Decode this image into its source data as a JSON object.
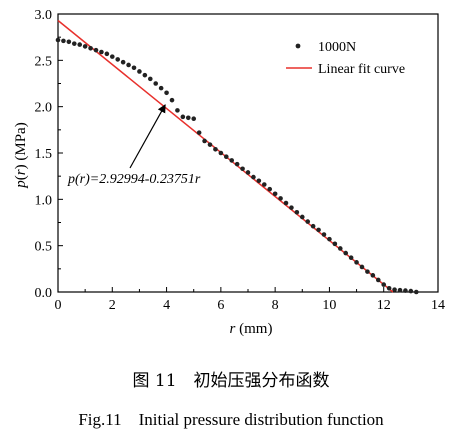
{
  "chart_data": {
    "type": "scatter",
    "xlabel": "r (mm)",
    "ylabel": "p(r) (MPa)",
    "xlim": [
      0,
      14
    ],
    "ylim": [
      0.0,
      3.0
    ],
    "xticks": [
      "0",
      "2",
      "4",
      "6",
      "8",
      "10",
      "12",
      "14"
    ],
    "yticks": [
      "0.0",
      "0.5",
      "1.0",
      "1.5",
      "2.0",
      "2.5",
      "3.0"
    ],
    "grid": false,
    "legend_position": "top-right",
    "legend": [
      "1000N",
      "Linear fit curve"
    ],
    "annotation": "p(r)=2.92994-0.23751r",
    "series": [
      {
        "name": "1000N",
        "kind": "scatter",
        "color": "#222222",
        "x": [
          0.0,
          0.2,
          0.4,
          0.6,
          0.8,
          1.0,
          1.2,
          1.4,
          1.6,
          1.8,
          2.0,
          2.2,
          2.4,
          2.6,
          2.8,
          3.0,
          3.2,
          3.4,
          3.6,
          3.8,
          4.0,
          4.2,
          4.4,
          4.6,
          4.8,
          5.0,
          5.2,
          5.4,
          5.6,
          5.8,
          6.0,
          6.2,
          6.4,
          6.6,
          6.8,
          7.0,
          7.2,
          7.4,
          7.6,
          7.8,
          8.0,
          8.2,
          8.4,
          8.6,
          8.8,
          9.0,
          9.2,
          9.4,
          9.6,
          9.8,
          10.0,
          10.2,
          10.4,
          10.6,
          10.8,
          11.0,
          11.2,
          11.4,
          11.6,
          11.8,
          12.0,
          12.2,
          12.4,
          12.6,
          12.8,
          13.0,
          13.2
        ],
        "y": [
          2.72,
          2.71,
          2.7,
          2.68,
          2.67,
          2.65,
          2.63,
          2.61,
          2.59,
          2.57,
          2.54,
          2.51,
          2.48,
          2.45,
          2.42,
          2.38,
          2.34,
          2.3,
          2.25,
          2.2,
          2.15,
          2.07,
          1.96,
          1.89,
          1.88,
          1.87,
          1.72,
          1.63,
          1.59,
          1.54,
          1.5,
          1.46,
          1.42,
          1.38,
          1.33,
          1.29,
          1.24,
          1.2,
          1.16,
          1.11,
          1.06,
          1.01,
          0.96,
          0.91,
          0.86,
          0.81,
          0.76,
          0.71,
          0.67,
          0.62,
          0.57,
          0.52,
          0.47,
          0.42,
          0.37,
          0.32,
          0.27,
          0.22,
          0.18,
          0.13,
          0.08,
          0.04,
          0.025,
          0.02,
          0.015,
          0.01,
          0.0
        ]
      },
      {
        "name": "Linear fit curve",
        "kind": "line",
        "color": "#e8302c",
        "x": [
          0.0,
          12.34
        ],
        "y": [
          2.93,
          0.0
        ]
      }
    ]
  },
  "caption": {
    "cn": "图 11　初始压强分布函数",
    "en": "Fig.11　Initial pressure distribution function"
  }
}
